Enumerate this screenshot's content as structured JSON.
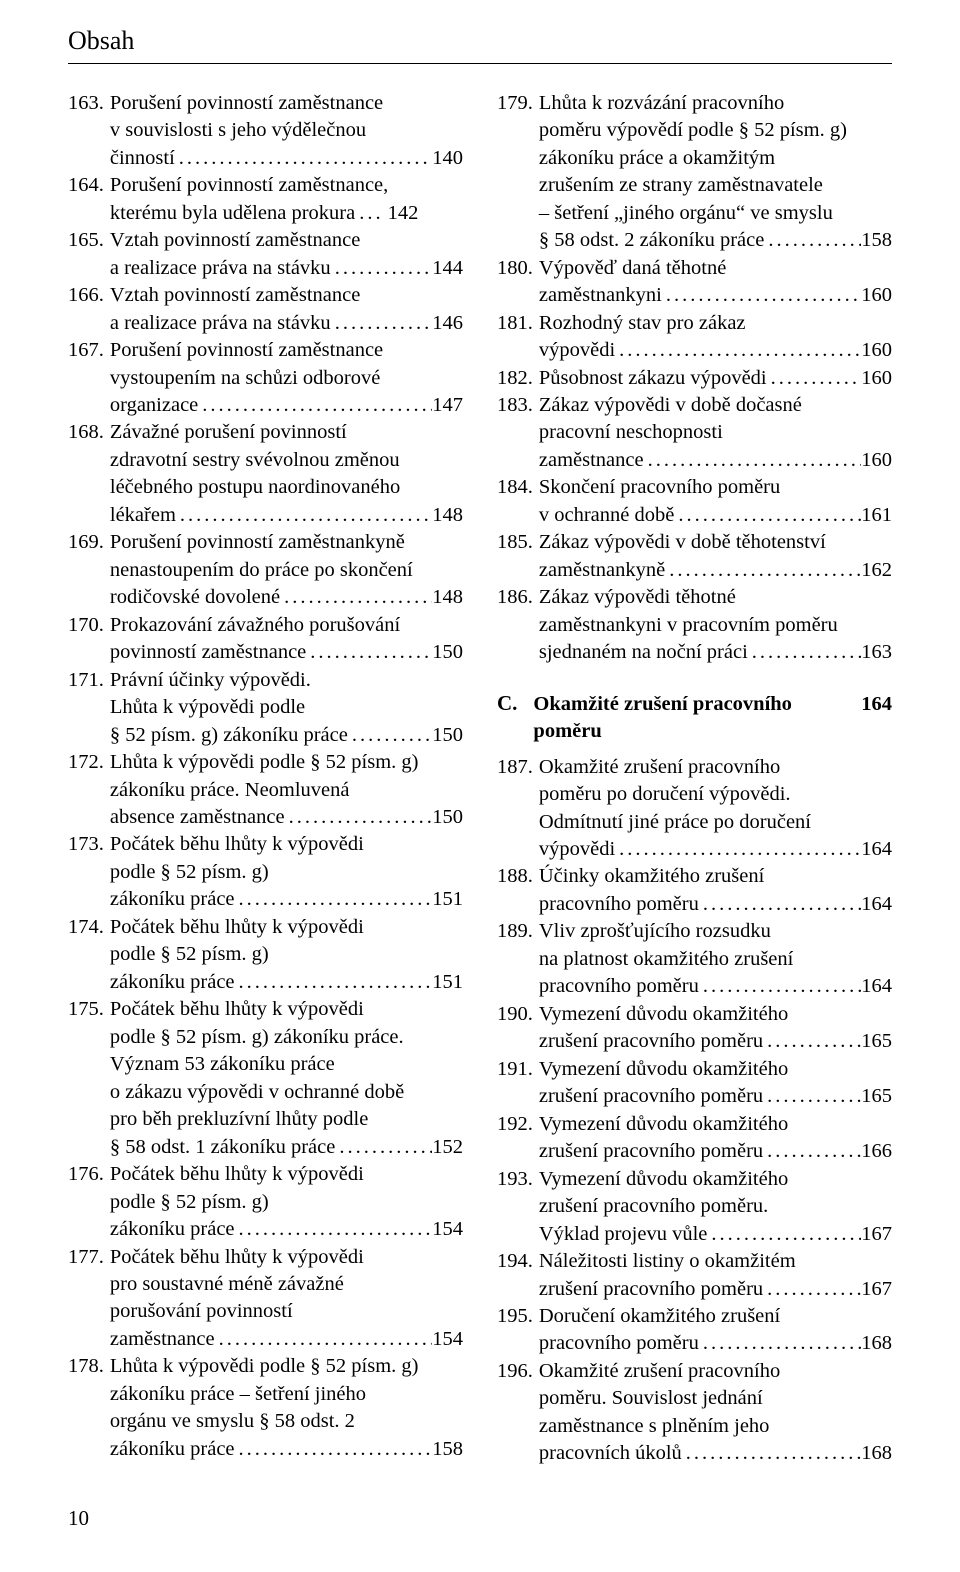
{
  "header": {
    "title": "Obsah"
  },
  "pageNumber": "10",
  "leftColumn": [
    {
      "num": "163.",
      "lines": [
        "Porušení povinností zaměstnance",
        "v souvislosti s jeho výdělečnou"
      ],
      "last": "činností",
      "page": "140"
    },
    {
      "num": "164.",
      "lines": [
        "Porušení povinností zaměstnance,"
      ],
      "last": "kterému byla udělena prokura",
      "page": "142",
      "shortDots": true
    },
    {
      "num": "165.",
      "lines": [
        "Vztah povinností zaměstnance"
      ],
      "last": "a realizace práva na stávku",
      "page": "144"
    },
    {
      "num": "166.",
      "lines": [
        "Vztah povinností zaměstnance"
      ],
      "last": "a realizace práva na stávku",
      "page": "146"
    },
    {
      "num": "167.",
      "lines": [
        "Porušení povinností zaměstnance",
        "vystoupením na schůzi odborové"
      ],
      "last": "organizace",
      "page": "147"
    },
    {
      "num": "168.",
      "lines": [
        "Závažné porušení povinností",
        "zdravotní sestry svévolnou změnou",
        "léčebného postupu naordinovaného"
      ],
      "last": "lékařem",
      "page": "148"
    },
    {
      "num": "169.",
      "lines": [
        "Porušení povinností zaměstnankyně",
        "nenastoupením do práce po skončení"
      ],
      "last": "rodičovské dovolené",
      "page": "148"
    },
    {
      "num": "170.",
      "lines": [
        "Prokazování závažného porušování"
      ],
      "last": "povinností zaměstnance",
      "page": "150"
    },
    {
      "num": "171.",
      "lines": [
        "Právní účinky výpovědi.",
        "Lhůta k výpovědi podle"
      ],
      "last": "§ 52 písm. g) zákoníku práce",
      "page": "150"
    },
    {
      "num": "172.",
      "lines": [
        "Lhůta k výpovědi podle § 52 písm. g)",
        "zákoníku práce. Neomluvená"
      ],
      "last": "absence zaměstnance",
      "page": "150"
    },
    {
      "num": "173.",
      "lines": [
        "Počátek běhu lhůty k výpovědi",
        "podle § 52 písm. g)"
      ],
      "last": "zákoníku práce",
      "page": "151"
    },
    {
      "num": "174.",
      "lines": [
        "Počátek běhu lhůty k výpovědi",
        "podle § 52 písm. g)"
      ],
      "last": "zákoníku práce",
      "page": "151"
    },
    {
      "num": "175.",
      "lines": [
        "Počátek běhu lhůty k výpovědi",
        "podle § 52 písm. g) zákoníku práce.",
        "Význam 53 zákoníku práce",
        "o zákazu výpovědi v ochranné době",
        "pro běh prekluzívní lhůty podle"
      ],
      "last": "§ 58 odst. 1 zákoníku práce",
      "page": "152"
    },
    {
      "num": "176.",
      "lines": [
        "Počátek běhu lhůty k výpovědi",
        "podle § 52 písm. g)"
      ],
      "last": "zákoníku práce",
      "page": "154"
    },
    {
      "num": "177.",
      "lines": [
        "Počátek běhu lhůty k výpovědi",
        "pro soustavné méně závažné",
        "porušování povinností"
      ],
      "last": "zaměstnance",
      "page": "154"
    },
    {
      "num": "178.",
      "lines": [
        "Lhůta k výpovědi podle § 52 písm. g)",
        "zákoníku práce – šetření jiného",
        "orgánu ve smyslu § 58 odst. 2"
      ],
      "last": "zákoníku práce",
      "page": "158"
    }
  ],
  "rightColumn": [
    {
      "type": "entries",
      "entries": [
        {
          "num": "179.",
          "lines": [
            "Lhůta k rozvázání pracovního",
            "poměru výpovědí podle § 52 písm. g)",
            "zákoníku práce a okamžitým",
            "zrušením ze strany zaměstnavatele",
            "– šetření „jiného orgánu“ ve smyslu"
          ],
          "last": "§ 58 odst. 2 zákoníku práce",
          "page": "158"
        },
        {
          "num": "180.",
          "lines": [
            "Výpověď daná těhotné"
          ],
          "last": "zaměstnankyni",
          "page": "160"
        },
        {
          "num": "181.",
          "lines": [
            "Rozhodný stav pro zákaz"
          ],
          "last": "výpovědi",
          "page": "160"
        },
        {
          "num": "182.",
          "last": "Působnost zákazu výpovědi",
          "page": "160"
        },
        {
          "num": "183.",
          "lines": [
            "Zákaz výpovědi v době dočasné",
            "pracovní neschopnosti"
          ],
          "last": "zaměstnance",
          "page": "160"
        },
        {
          "num": "184.",
          "lines": [
            "Skončení pracovního poměru"
          ],
          "last": "v ochranné době",
          "page": "161"
        },
        {
          "num": "185.",
          "lines": [
            "Zákaz výpovědi v době těhotenství"
          ],
          "last": "zaměstnankyně",
          "page": "162"
        },
        {
          "num": "186.",
          "lines": [
            "Zákaz výpovědi těhotné",
            "zaměstnankyni v pracovním poměru"
          ],
          "last": "sjednaném na noční práci",
          "page": "163"
        }
      ]
    },
    {
      "type": "section",
      "letter": "C.",
      "title": "Okamžité zrušení pracovního poměru",
      "page": "164"
    },
    {
      "type": "entries",
      "entries": [
        {
          "num": "187.",
          "lines": [
            "Okamžité zrušení pracovního",
            "poměru po doručení výpovědi.",
            "Odmítnutí jiné práce po doručení"
          ],
          "last": "výpovědi",
          "page": "164"
        },
        {
          "num": "188.",
          "lines": [
            "Účinky okamžitého zrušení"
          ],
          "last": "pracovního poměru",
          "page": "164"
        },
        {
          "num": "189.",
          "lines": [
            "Vliv zprošťujícího rozsudku",
            "na platnost okamžitého zrušení"
          ],
          "last": "pracovního poměru",
          "page": "164"
        },
        {
          "num": "190.",
          "lines": [
            "Vymezení důvodu okamžitého"
          ],
          "last": "zrušení pracovního poměru",
          "page": "165"
        },
        {
          "num": "191.",
          "lines": [
            "Vymezení důvodu okamžitého"
          ],
          "last": "zrušení pracovního poměru",
          "page": "165"
        },
        {
          "num": "192.",
          "lines": [
            "Vymezení důvodu okamžitého"
          ],
          "last": "zrušení pracovního poměru",
          "page": "166"
        },
        {
          "num": "193.",
          "lines": [
            "Vymezení důvodu okamžitého",
            "zrušení pracovního poměru."
          ],
          "last": "Výklad projevu vůle",
          "page": "167"
        },
        {
          "num": "194.",
          "lines": [
            "Náležitosti listiny o okamžitém"
          ],
          "last": "zrušení pracovního poměru",
          "page": "167"
        },
        {
          "num": "195.",
          "lines": [
            "Doručení okamžitého zrušení"
          ],
          "last": "pracovního poměru",
          "page": "168"
        },
        {
          "num": "196.",
          "lines": [
            "Okamžité zrušení pracovního",
            "poměru. Souvislost jednání",
            "zaměstnance s plněním jeho"
          ],
          "last": "pracovních úkolů",
          "page": "168"
        }
      ]
    }
  ]
}
